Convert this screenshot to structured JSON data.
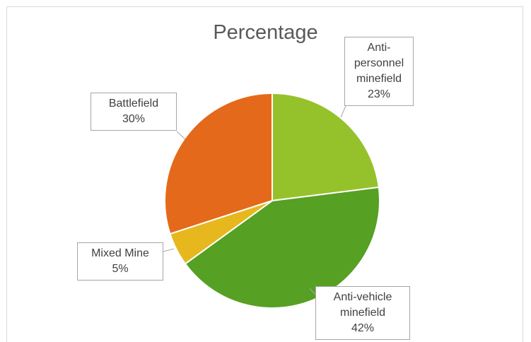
{
  "chart_data": {
    "type": "pie",
    "title": "Percentage",
    "categories": [
      "Anti-personnel minefield",
      "Anti-vehicle minefield",
      "Mixed Mine",
      "Battlefield"
    ],
    "values": [
      23,
      42,
      5,
      30
    ],
    "value_labels": [
      "23%",
      "42%",
      "5%",
      "30%"
    ],
    "colors": [
      "#95c22b",
      "#56a023",
      "#e6b81e",
      "#e5691a"
    ]
  }
}
